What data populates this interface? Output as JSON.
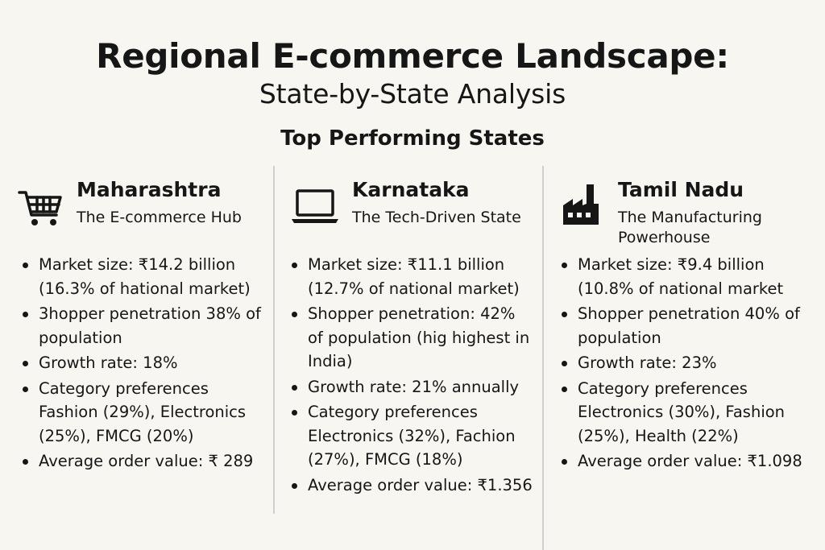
{
  "header": {
    "title": "Regional E-commerce Landscape:",
    "subtitle": "State-by-State Analysis",
    "section_heading": "Top Performing States"
  },
  "states": [
    {
      "name": "Maharashtra",
      "tagline": "The E-commerce Hub",
      "icon": "shopping-cart-icon",
      "facts": [
        "Market size: ₹14.2 billion (16.3% of hational market)",
        "3hopper penetration 38% of population",
        "Growth rate: 18%",
        "Category preferences Fashion (29%), Electronics (25%), FMCG (20%)",
        "Average order value: ₹ 289"
      ]
    },
    {
      "name": "Karnataka",
      "tagline": "The Tech-Driven State",
      "icon": "laptop-icon",
      "facts": [
        "Market size: ₹11.1 billion (12.7% of national market)",
        "Shopper penetration: 42% of population (hig highest in India)",
        "Growth rate: 21% annually",
        "Category preferences Electronics (32%), Fachion (27%), FMCG (18%)",
        "Average order value: ₹1.356"
      ]
    },
    {
      "name": "Tamil Nadu",
      "tagline": "The Manufacturing Powerhouse",
      "icon": "factory-icon",
      "facts": [
        "Market size: ₹9.4 billion (10.8% of national market",
        "Shopper penetration 40% of population",
        "Growth rate: 23%",
        "Category preferences Electronics (30%), Fashion (25%), Health (22%)",
        "Average order value: ₹1.098"
      ]
    }
  ]
}
